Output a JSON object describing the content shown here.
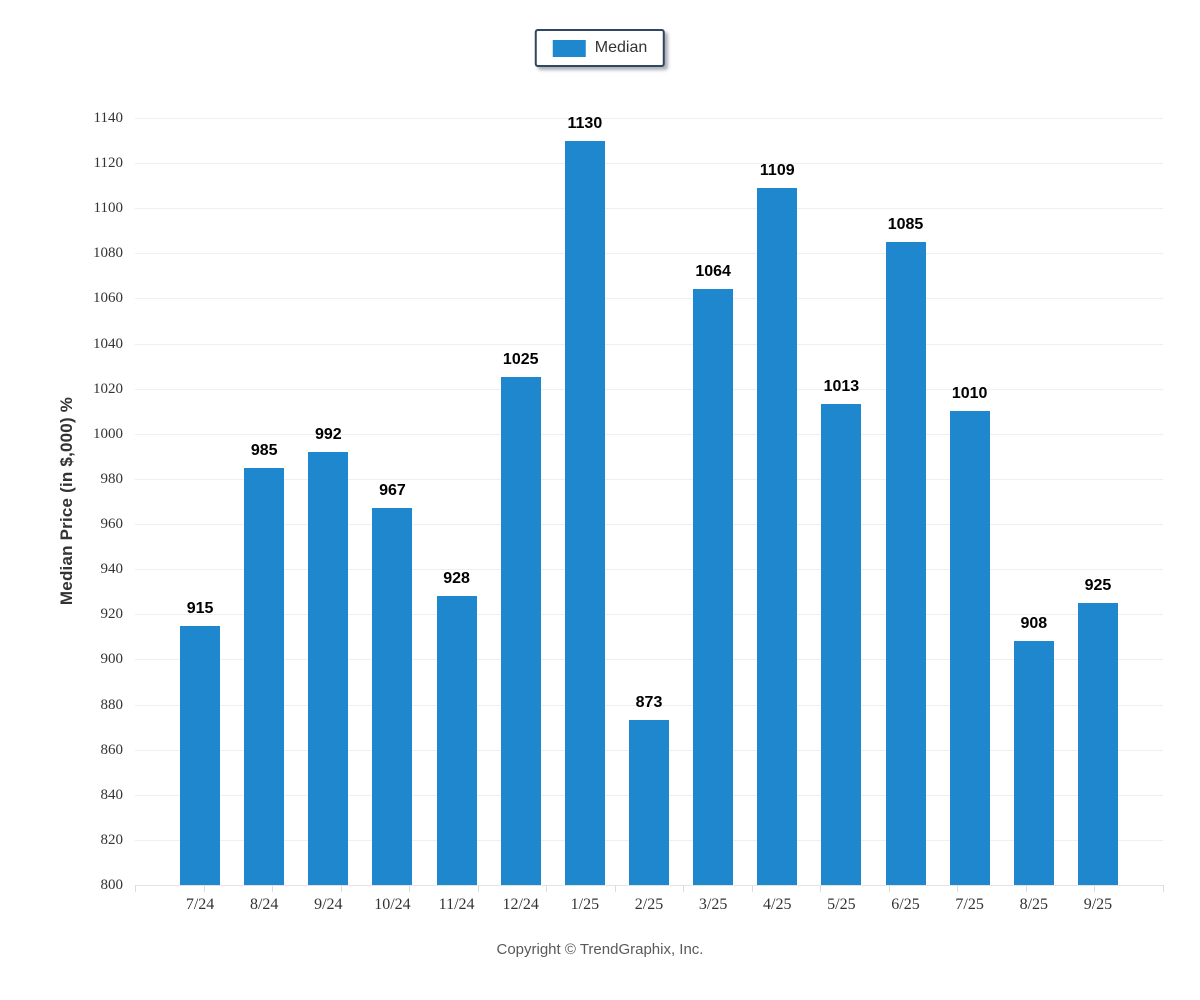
{
  "legend": {
    "label": "Median",
    "swatch_color": "#1E87CD"
  },
  "footer": {
    "copyright": "Copyright © TrendGraphix, Inc."
  },
  "colors": {
    "bar": "#1E87CD",
    "grid": "#EFEFEF",
    "axis_line": "#E3E3E3",
    "tick_mark": "#DCDCDC",
    "axis_label": "#333333",
    "value_label": "#000000",
    "footer_text": "#58595B",
    "legend_border": "#2F4860"
  },
  "chart_data": {
    "type": "bar",
    "title": "",
    "categories": [
      "7/24",
      "8/24",
      "9/24",
      "10/24",
      "11/24",
      "12/24",
      "1/25",
      "2/25",
      "3/25",
      "4/25",
      "5/25",
      "6/25",
      "7/25",
      "8/25",
      "9/25"
    ],
    "series": [
      {
        "name": "Median",
        "values": [
          915,
          985,
          992,
          967,
          928,
          1025,
          1130,
          873,
          1064,
          1109,
          1013,
          1085,
          1010,
          908,
          925
        ]
      }
    ],
    "xlabel": "",
    "ylabel": "Median Price (in $,000) %",
    "ylim": [
      800,
      1140
    ],
    "ytick_step": 20,
    "grid": "horizontal",
    "legend_position": "top-center",
    "value_labels": true
  }
}
